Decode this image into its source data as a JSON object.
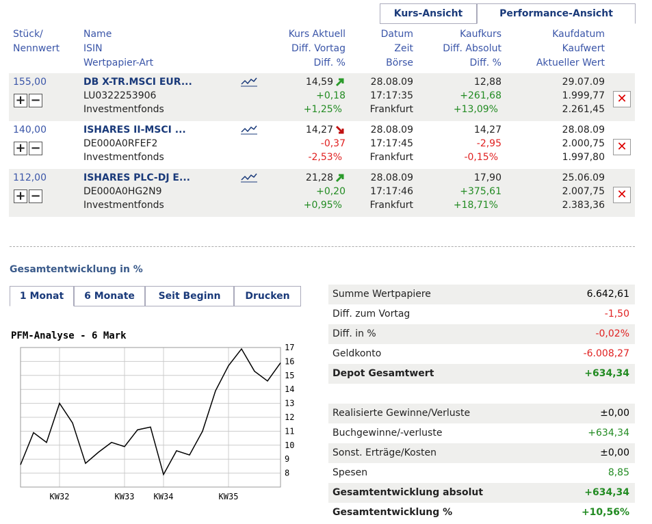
{
  "view_tabs": [
    "Kurs-Ansicht",
    "Performance-Ansicht"
  ],
  "table": {
    "headers": [
      [
        "Stück/",
        "Nennwert"
      ],
      [
        "Name",
        "ISIN",
        "Wertpapier-Art"
      ],
      [
        "Kurs Aktuell",
        "Diff. Vortag",
        "Diff. %"
      ],
      [
        "Datum",
        "Zeit",
        "Börse"
      ],
      [
        "Kaufkurs",
        "Diff. Absolut",
        "Diff. %"
      ],
      [
        "Kaufdatum",
        "Kaufwert",
        "Aktueller Wert"
      ]
    ],
    "rows": [
      {
        "qty": "155,00",
        "name": "DB X-TR.MSCI EUR...",
        "isin": "LU0322253906",
        "type": "Investmentfonds",
        "kurs": "14,59",
        "diff_vortag": "+0,18",
        "diff_pct": "+1,25%",
        "datum": "28.08.09",
        "zeit": "17:17:35",
        "boerse": "Frankfurt",
        "kaufkurs": "12,88",
        "diff_abs": "+261,68",
        "diff_abs_pct": "+13,09%",
        "kaufdatum": "29.07.09",
        "kaufwert": "1.999,77",
        "aktueller_wert": "2.261,45"
      },
      {
        "qty": "140,00",
        "name": "ISHARES II-MSCI ...",
        "isin": "DE000A0RFEF2",
        "type": "Investmentfonds",
        "kurs": "14,27",
        "diff_vortag": "-0,37",
        "diff_pct": "-2,53%",
        "datum": "28.08.09",
        "zeit": "17:17:45",
        "boerse": "Frankfurt",
        "kaufkurs": "14,27",
        "diff_abs": "-2,95",
        "diff_abs_pct": "-0,15%",
        "kaufdatum": "28.08.09",
        "kaufwert": "2.000,75",
        "aktueller_wert": "1.997,80"
      },
      {
        "qty": "112,00",
        "name": "ISHARES PLC-DJ E...",
        "isin": "DE000A0HG2N9",
        "type": "Investmentfonds",
        "kurs": "21,28",
        "diff_vortag": "+0,20",
        "diff_pct": "+0,95%",
        "datum": "28.08.09",
        "zeit": "17:17:46",
        "boerse": "Frankfurt",
        "kaufkurs": "17,90",
        "diff_abs": "+375,61",
        "diff_abs_pct": "+18,71%",
        "kaufdatum": "25.06.09",
        "kaufwert": "2.007,75",
        "aktueller_wert": "2.383,36"
      }
    ]
  },
  "section_title": "Gesamtentwicklung in %",
  "period_tabs": [
    "1 Monat",
    "6 Monate",
    "Seit Beginn",
    "Drucken"
  ],
  "chart_data": {
    "type": "line",
    "title": "PFM-Analyse - 6 Mark",
    "categories": [
      null,
      null,
      null,
      "KW32",
      null,
      null,
      null,
      null,
      "KW33",
      null,
      null,
      "KW34",
      null,
      null,
      null,
      null,
      "KW35",
      null,
      null,
      null,
      null
    ],
    "values": [
      8.6,
      10.9,
      10.2,
      13.0,
      11.6,
      8.7,
      9.5,
      10.2,
      9.9,
      11.1,
      11.3,
      7.9,
      9.6,
      9.3,
      11.0,
      13.9,
      15.7,
      16.9,
      15.3,
      14.6,
      15.9
    ],
    "color": "#000000",
    "ylim": [
      7,
      17
    ],
    "yticks": [
      8,
      9,
      10,
      11,
      12,
      13,
      14,
      15,
      16,
      17
    ],
    "grid": true
  },
  "summary": [
    [
      {
        "label": "Summe Wertpapiere",
        "value": "6.642,61",
        "bold": false,
        "color": "#000000"
      },
      {
        "label": "Diff. zum Vortag",
        "value": "-1,50",
        "bold": false,
        "color": "#e02020"
      },
      {
        "label": "Diff. in %",
        "value": "-0,02%",
        "bold": false,
        "color": "#e02020"
      },
      {
        "label": "Geldkonto",
        "value": "-6.008,27",
        "bold": false,
        "color": "#e02020"
      },
      {
        "label": "Depot Gesamtwert",
        "value": "+634,34",
        "bold": true,
        "color": "#228b22"
      }
    ],
    [
      {
        "label": "Realisierte Gewinne/Verluste",
        "value": "±0,00",
        "bold": false,
        "color": "#000000"
      },
      {
        "label": "Buchgewinne/-verluste",
        "value": "+634,34",
        "bold": false,
        "color": "#228b22"
      },
      {
        "label": "Sonst. Erträge/Kosten",
        "value": "±0,00",
        "bold": false,
        "color": "#000000"
      },
      {
        "label": "Spesen",
        "value": "8,85",
        "bold": false,
        "color": "#228b22"
      },
      {
        "label": "Gesamtentwicklung absolut",
        "value": "+634,34",
        "bold": true,
        "color": "#228b22"
      },
      {
        "label": "Gesamtentwicklung %",
        "value": "+10,56%",
        "bold": true,
        "color": "#228b22"
      }
    ]
  ]
}
